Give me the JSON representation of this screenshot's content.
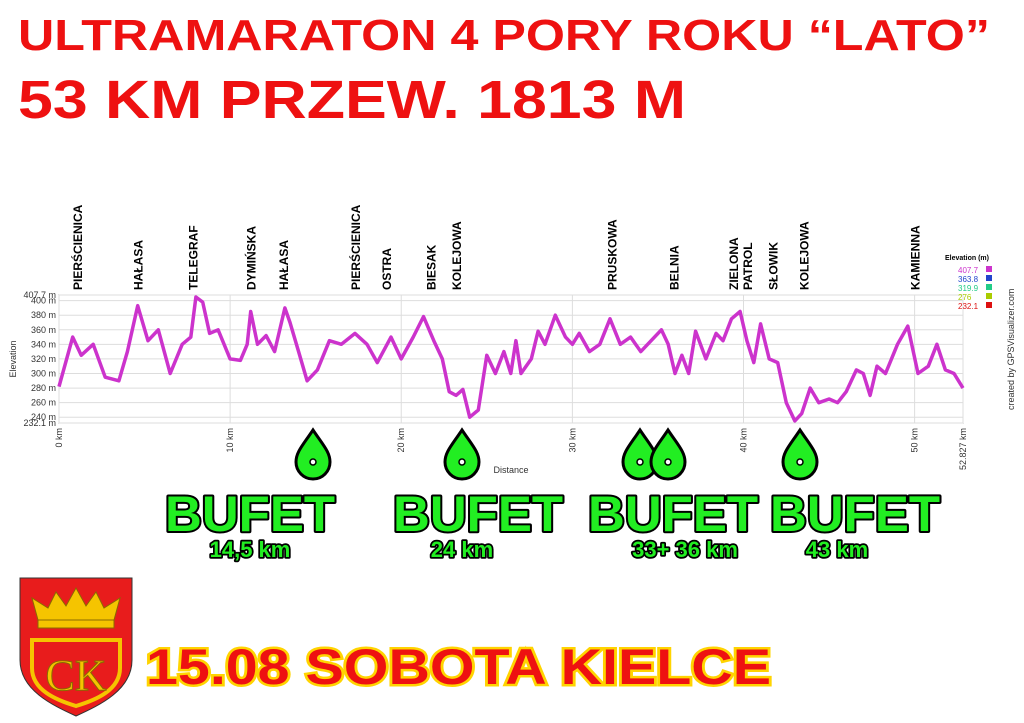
{
  "header": {
    "title": "ULTRAMARATON 4 PORY ROKU “LATO”",
    "subtitle": "53 KM PRZEW. 1813 M"
  },
  "chart_data": {
    "type": "line",
    "xlabel": "Distance",
    "ylabel": "Elevation",
    "credit": "created by GPSVisualizer.com",
    "x": [
      0,
      0.8,
      1.3,
      2,
      2.7,
      3.5,
      4.0,
      4.6,
      5.2,
      5.8,
      6.5,
      7.2,
      7.7,
      8.0,
      8.4,
      8.8,
      9.3,
      10,
      10.6,
      11.0,
      11.2,
      11.6,
      12.1,
      12.6,
      13.2,
      13.5,
      14.0,
      14.5,
      15.1,
      15.8,
      16.5,
      17.3,
      18.0,
      18.6,
      19.4,
      20.0,
      20.7,
      21.3,
      21.9,
      22.4,
      22.8,
      23.2,
      23.6,
      24.0,
      24.5,
      25.0,
      25.5,
      26.0,
      26.4,
      26.7,
      27.0,
      27.6,
      28.0,
      28.4,
      29.0,
      29.6,
      30.0,
      30.4,
      31.0,
      31.6,
      32.2,
      32.8,
      33.4,
      34.0,
      34.6,
      35.2,
      35.6,
      36.0,
      36.4,
      36.8,
      37.2,
      37.8,
      38.4,
      38.8,
      39.3,
      39.8,
      40.2,
      40.6,
      41.0,
      41.5,
      42.0,
      42.5,
      43.0,
      43.4,
      43.9,
      44.4,
      45.0,
      45.5,
      46.0,
      46.6,
      47.0,
      47.4,
      47.8,
      48.3,
      49.0,
      49.6,
      50.2,
      50.8,
      51.3,
      51.8,
      52.3,
      52.827
    ],
    "values": [
      282,
      350,
      325,
      340,
      295,
      290,
      330,
      393,
      345,
      360,
      300,
      340,
      350,
      405,
      398,
      355,
      360,
      320,
      318,
      340,
      385,
      340,
      352,
      330,
      390,
      370,
      330,
      290,
      305,
      345,
      340,
      355,
      340,
      315,
      350,
      320,
      350,
      378,
      345,
      320,
      275,
      270,
      278,
      240,
      250,
      325,
      300,
      330,
      300,
      345,
      300,
      320,
      358,
      340,
      380,
      350,
      340,
      355,
      330,
      340,
      375,
      340,
      350,
      330,
      345,
      360,
      340,
      300,
      325,
      300,
      358,
      320,
      355,
      345,
      375,
      385,
      345,
      315,
      368,
      320,
      315,
      260,
      235,
      245,
      280,
      260,
      265,
      260,
      275,
      305,
      300,
      270,
      310,
      300,
      340,
      365,
      300,
      310,
      340,
      305,
      300,
      280
    ],
    "xlim": [
      0,
      52.827
    ],
    "ylim": [
      232.1,
      407.7
    ],
    "xticks": [
      {
        "value": 0,
        "label": "0 km"
      },
      {
        "value": 10,
        "label": "10 km"
      },
      {
        "value": 20,
        "label": "20 km"
      },
      {
        "value": 30,
        "label": "30 km"
      },
      {
        "value": 40,
        "label": "40 km"
      },
      {
        "value": 50,
        "label": "50 km"
      },
      {
        "value": 52.827,
        "label": "52.827 km"
      }
    ],
    "yticks": [
      {
        "value": 232.1,
        "label": "232.1 m"
      },
      {
        "value": 240,
        "label": "240 m"
      },
      {
        "value": 260,
        "label": "260 m"
      },
      {
        "value": 280,
        "label": "280 m"
      },
      {
        "value": 300,
        "label": "300 m"
      },
      {
        "value": 320,
        "label": "320 m"
      },
      {
        "value": 340,
        "label": "340 m"
      },
      {
        "value": 360,
        "label": "360 m"
      },
      {
        "value": 380,
        "label": "380 m"
      },
      {
        "value": 400,
        "label": "400 m"
      },
      {
        "value": 407.7,
        "label": "407.7 m"
      }
    ],
    "grid": true,
    "legend": {
      "title": "Elevation (m)",
      "entries": [
        {
          "value": 407.7,
          "color": "#cc33cc"
        },
        {
          "value": 363.8,
          "color": "#2244cc"
        },
        {
          "value": 319.9,
          "color": "#22cc88"
        },
        {
          "value": 276.0,
          "color": "#aacc00"
        },
        {
          "value": 232.1,
          "color": "#dd1111"
        }
      ]
    },
    "waypoints": [
      {
        "lines": [
          "PIERŚCIENICA"
        ],
        "x": 1.05
      },
      {
        "lines": [
          "HAŁASA"
        ],
        "x": 4.6
      },
      {
        "lines": [
          "TELEGRAF"
        ],
        "x": 7.8
      },
      {
        "lines": [
          "DYMIŃSKA"
        ],
        "x": 11.2
      },
      {
        "lines": [
          "HAŁASA"
        ],
        "x": 13.1
      },
      {
        "lines": [
          "PIERŚCIENICA"
        ],
        "x": 17.3
      },
      {
        "lines": [
          "OSTRA"
        ],
        "x": 19.1
      },
      {
        "lines": [
          "BIESAK"
        ],
        "x": 21.7
      },
      {
        "lines": [
          "KOLEJOWA"
        ],
        "x": 23.2
      },
      {
        "lines": [
          "PRUSKOWA"
        ],
        "x": 32.3
      },
      {
        "lines": [
          "BELNIA"
        ],
        "x": 35.9
      },
      {
        "lines": [
          "ZIELONA",
          "PATROL"
        ],
        "x": 39.8
      },
      {
        "lines": [
          "SŁOWIK"
        ],
        "x": 41.7
      },
      {
        "lines": [
          "KOLEJOWA"
        ],
        "x": 43.5
      },
      {
        "lines": [
          "KAMIENNA"
        ],
        "x": 50
      }
    ]
  },
  "bufets": [
    {
      "title": "BUFET",
      "km": "14,5 km"
    },
    {
      "title": "BUFET",
      "km": "24 km"
    },
    {
      "title": "BUFET",
      "km": "33+ 36 km"
    },
    {
      "title": "BUFET",
      "km": "43 km"
    }
  ],
  "footer": {
    "text": "15.08 SOBOTA KIELCE",
    "crest": "CK"
  }
}
